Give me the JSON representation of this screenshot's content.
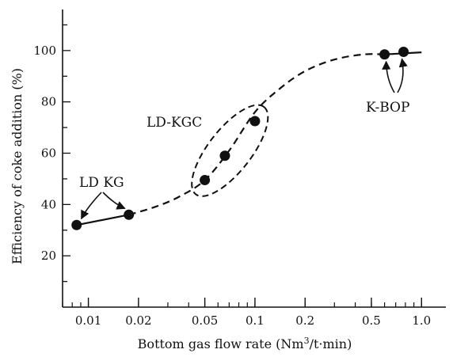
{
  "chart_data": {
    "type": "scatter",
    "xscale": "log",
    "xlim": [
      0.007,
      1.4
    ],
    "ylim": [
      0,
      116
    ],
    "xticks": [
      0.01,
      0.02,
      0.05,
      0.1,
      0.2,
      0.5,
      1.0
    ],
    "xtick_labels": [
      "0.01",
      "0.02",
      "0.05",
      "0.1",
      "0.2",
      "0.5",
      "1.0"
    ],
    "yticks": [
      20,
      40,
      60,
      80,
      100
    ],
    "ytick_labels": [
      "20",
      "40",
      "60",
      "80",
      "100"
    ],
    "xlabel_main": "Bottom gas flow rate (Nm",
    "xlabel_sup": "3",
    "xlabel_tail": "/t·min)",
    "ylabel": "Efficiency of coke addition (%)",
    "grid": false,
    "series": [
      {
        "name": "LD KG",
        "x": [
          0.0085,
          0.0175
        ],
        "y": [
          32,
          36
        ]
      },
      {
        "name": "LD-KGC",
        "x": [
          0.05,
          0.066,
          0.1
        ],
        "y": [
          49.5,
          59,
          72.5
        ]
      },
      {
        "name": "K-BOP",
        "x": [
          0.6,
          0.78
        ],
        "y": [
          98.5,
          99.5
        ]
      }
    ],
    "trend_curve": {
      "style": "dashed",
      "x": [
        0.0175,
        0.025,
        0.035,
        0.05,
        0.07,
        0.1,
        0.14,
        0.2,
        0.3,
        0.45,
        0.6
      ],
      "y": [
        36,
        39,
        43,
        49.5,
        61,
        76,
        85,
        92,
        96.5,
        98.5,
        98.5
      ]
    },
    "annotations": [
      {
        "text": "LD KG",
        "near_series": "LD KG"
      },
      {
        "text": "LD-KGC",
        "near_series": "LD-KGC"
      },
      {
        "text": "K-BOP",
        "near_series": "K-BOP"
      }
    ]
  }
}
